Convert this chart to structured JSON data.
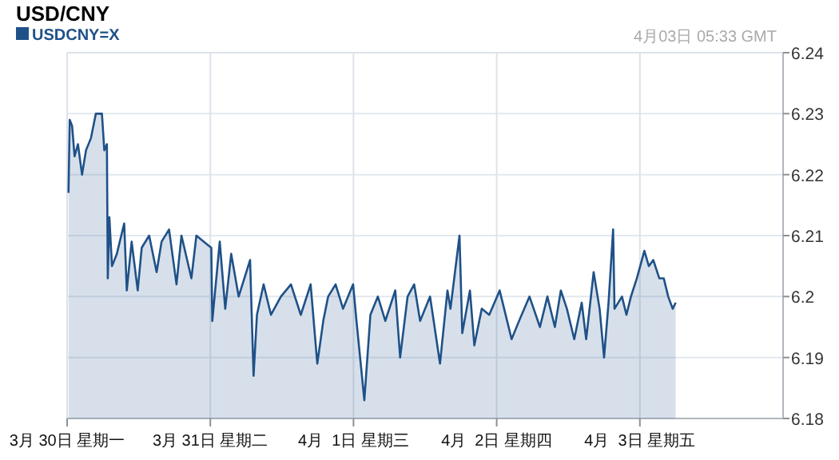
{
  "chart_data": {
    "type": "area",
    "title": "USD/CNY",
    "annotations": [
      "4月03日 05:33 GMT"
    ],
    "x": [
      "--03-30T00:14",
      "--03-30T00:26",
      "--03-30T00:50",
      "--03-30T01:15",
      "--03-30T01:49",
      "--03-30T02:30",
      "--03-30T03:10",
      "--03-30T04:00",
      "--03-30T04:49",
      "--03-30T05:50",
      "--03-30T06:14",
      "--03-30T06:40",
      "--03-30T06:49",
      "--03-30T07:05",
      "--03-30T07:31",
      "--03-30T08:20",
      "--03-30T09:34",
      "--03-30T10:00",
      "--03-30T10:49",
      "--03-30T11:50",
      "--03-30T12:30",
      "--03-30T13:45",
      "--03-30T15:00",
      "--03-30T15:50",
      "--03-30T17:05",
      "--03-30T18:20",
      "--03-30T19:10",
      "--03-30T20:50",
      "--03-30T21:40",
      "--03-30T22:55",
      "--03-31T00:10",
      "--03-31T00:20",
      "--03-31T01:35",
      "--03-31T02:30",
      "--03-31T03:30",
      "--03-31T04:45",
      "--03-31T06:40",
      "--03-31T07:15",
      "--03-31T07:49",
      "--03-31T08:56",
      "--03-31T10:10",
      "--03-31T11:50",
      "--03-31T13:31",
      "--03-31T15:10",
      "--03-31T16:49",
      "--03-31T17:56",
      "--03-31T18:56",
      "--03-31T19:45",
      "--03-31T21:00",
      "--03-31T22:15",
      "--03-31T23:56",
      "--04-01T00:30",
      "--04-01T01:49",
      "--04-01T02:50",
      "--04-01T04:05",
      "--04-01T05:20",
      "--04-01T07:00",
      "--04-01T07:49",
      "--04-01T09:04",
      "--04-01T10:10",
      "--04-01T11:10",
      "--04-01T12:50",
      "--04-01T14:30",
      "--04-01T15:45",
      "--04-01T16:15",
      "--04-01T17:46",
      "--04-01T18:14",
      "--04-01T19:31",
      "--04-01T20:15",
      "--04-01T21:30",
      "--04-01T22:45",
      "--04-02T00:30",
      "--04-02T01:15",
      "--04-02T02:30",
      "--04-02T03:45",
      "--04-02T05:30",
      "--04-02T07:15",
      "--04-02T08:30",
      "--04-02T09:45",
      "--04-02T10:45",
      "--04-02T11:46",
      "--04-02T13:00",
      "--04-02T14:15",
      "--04-02T15:00",
      "--04-02T16:15",
      "--04-02T17:15",
      "--04-02T18:00",
      "--04-02T18:45",
      "--04-02T19:31",
      "--04-02T19:45",
      "--04-02T21:00",
      "--04-02T21:45",
      "--04-02T22:30",
      "--04-02T23:30",
      "--04-03T00:45",
      "--04-03T01:30",
      "--04-03T02:15",
      "--04-03T03:15",
      "--04-03T04:00",
      "--04-03T04:45",
      "--04-03T05:30",
      "--04-03T06:00"
    ],
    "series": [
      {
        "name": "USDCNY=X",
        "color": "#1f5188",
        "values": [
          6.217,
          6.229,
          6.228,
          6.223,
          6.225,
          6.22,
          6.224,
          6.226,
          6.23,
          6.23,
          6.224,
          6.225,
          6.203,
          6.213,
          6.205,
          6.207,
          6.212,
          6.201,
          6.209,
          6.201,
          6.208,
          6.21,
          6.204,
          6.209,
          6.211,
          6.202,
          6.21,
          6.203,
          6.21,
          6.209,
          6.208,
          6.196,
          6.209,
          6.198,
          6.207,
          6.2,
          6.206,
          6.187,
          6.197,
          6.202,
          6.197,
          6.2,
          6.202,
          6.197,
          6.202,
          6.189,
          6.196,
          6.2,
          6.202,
          6.198,
          6.202,
          6.196,
          6.183,
          6.197,
          6.2,
          6.196,
          6.201,
          6.19,
          6.2,
          6.202,
          6.196,
          6.2,
          6.189,
          6.201,
          6.198,
          6.21,
          6.194,
          6.201,
          6.192,
          6.198,
          6.197,
          6.201,
          6.198,
          6.193,
          6.196,
          6.2,
          6.195,
          6.2,
          6.195,
          6.201,
          6.198,
          6.193,
          6.199,
          6.193,
          6.204,
          6.198,
          6.19,
          6.199,
          6.211,
          6.198,
          6.2,
          6.197,
          6.2,
          6.203,
          6.2075,
          6.205,
          6.206,
          6.203,
          6.203,
          6.2,
          6.198,
          6.199
        ]
      }
    ],
    "xlim": [
      "--03-30T00:00",
      "--04-04T00:00"
    ],
    "xticks": [
      {
        "value": "--03-30T00:00",
        "label": "3月 30日 星期一"
      },
      {
        "value": "--03-31T00:00",
        "label": "3月 31日 星期二"
      },
      {
        "value": "--04-01T00:00",
        "label": "4月  1日 星期三"
      },
      {
        "value": "--04-02T00:00",
        "label": "4月  2日 星期四"
      },
      {
        "value": "--04-03T00:00",
        "label": "4月  3日 星期五"
      }
    ],
    "ylim": [
      6.18,
      6.24
    ],
    "yticks": [
      6.18,
      6.19,
      6.2,
      6.21,
      6.22,
      6.23,
      6.24
    ],
    "grid": true,
    "legend": "top left"
  }
}
